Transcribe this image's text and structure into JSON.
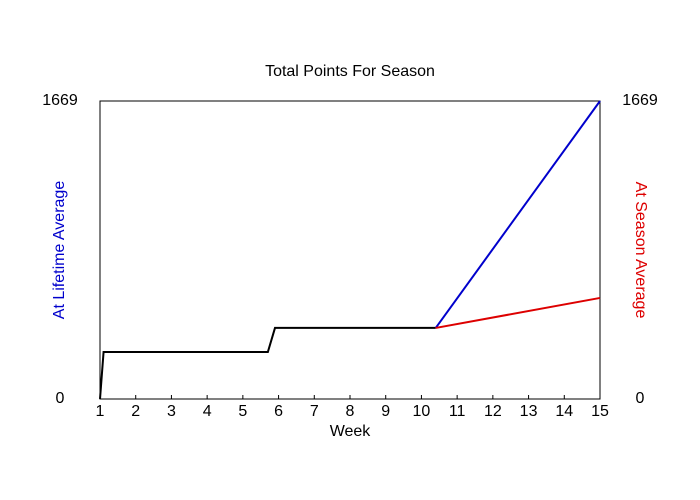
{
  "chart_data": {
    "type": "line",
    "title": "Total Points For Season",
    "xlabel": "Week",
    "ylabel": "At Lifetime Average",
    "ylabel_color": "#0000cc",
    "y2label": "At Season Average",
    "y2label_color": "#dd0000",
    "x": [
      1,
      1.1,
      5.7,
      5.9,
      10.4,
      15
    ],
    "series": [
      {
        "color": "#000000",
        "values": [
          0,
          263,
          263,
          398,
          398,
          null
        ]
      },
      {
        "color": "#0000cc",
        "values": [
          null,
          null,
          null,
          null,
          398,
          1669
        ]
      },
      {
        "color": "#dd0000",
        "axis": "y2",
        "values": [
          null,
          null,
          null,
          null,
          398,
          566
        ]
      }
    ],
    "xlim": [
      1,
      15
    ],
    "xticks": [
      1,
      2,
      3,
      4,
      5,
      6,
      7,
      8,
      9,
      10,
      11,
      12,
      13,
      14,
      15
    ],
    "ylim": [
      0,
      1669
    ],
    "yticks": [
      0,
      1669
    ],
    "y2lim": [
      0,
      1669
    ],
    "y2ticks": [
      0,
      1669
    ]
  }
}
